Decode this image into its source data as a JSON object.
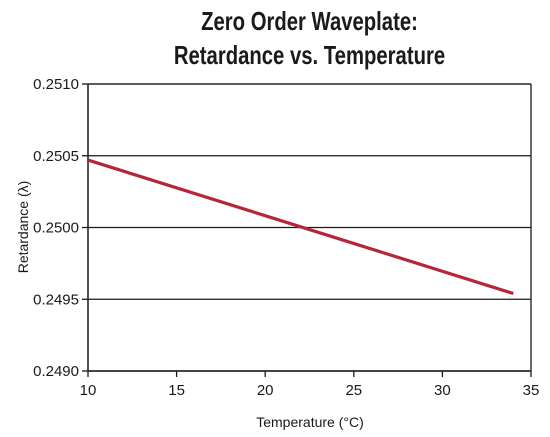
{
  "title_lines": [
    "Zero Order Waveplate:",
    "Retardance vs. Temperature"
  ],
  "chart_data": {
    "type": "line",
    "title": "Zero Order Waveplate: Retardance vs. Temperature",
    "xlabel": "Temperature (°C)",
    "ylabel": "Retardance (λ)",
    "xlim": [
      10,
      35
    ],
    "ylim": [
      0.249,
      0.251
    ],
    "x_ticks": [
      10,
      15,
      20,
      25,
      30,
      35
    ],
    "x_tick_labels": [
      "10",
      "15",
      "20",
      "25",
      "30",
      "35"
    ],
    "y_ticks": [
      0.249,
      0.2495,
      0.25,
      0.2505,
      0.251
    ],
    "y_tick_labels": [
      "0.2490",
      "0.2495",
      "0.2500",
      "0.2505",
      "0.2510"
    ],
    "grid": "horizontal",
    "legend": "none",
    "series": [
      {
        "x": [
          10,
          34
        ],
        "y": [
          0.25047,
          0.24954
        ],
        "color": "#b5263a"
      }
    ],
    "colors": {
      "line": "#b5263a",
      "axis": "#1a1a1a",
      "grid": "#1a1a1a"
    }
  }
}
